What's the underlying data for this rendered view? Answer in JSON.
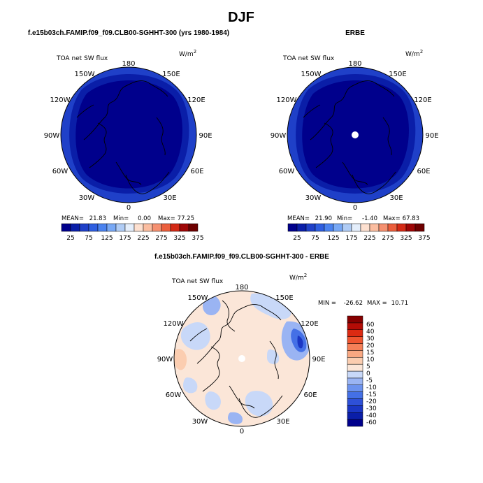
{
  "figure": {
    "title": "DJF"
  },
  "colors": {
    "abs_colorbar": [
      "#00008c",
      "#0a1ea8",
      "#1f40c8",
      "#2e5ee0",
      "#4a82ef",
      "#78a8f5",
      "#b0ccf5",
      "#e4eefb",
      "#fde0d0",
      "#fbbda0",
      "#f59070",
      "#eb5e3c",
      "#d42a16",
      "#9e0606",
      "#6e0000"
    ],
    "diff_colorbar": [
      "#00008c",
      "#0a1ea8",
      "#1a36c4",
      "#2e50d8",
      "#4470e6",
      "#6c92ee",
      "#9ab4f3",
      "#c8d8f8",
      "#fbe6d8",
      "#fbcdb0",
      "#f9a882",
      "#f58058",
      "#ef5530",
      "#dc2a12",
      "#b40c06",
      "#860000"
    ],
    "land_outline": "#000000"
  },
  "chart_data": [
    {
      "type": "heatmap",
      "projection": "polar-stereographic",
      "title": "f.e15b03ch.FAMIP.f09_f09.CLB00-SGHHT-300 (yrs 1980-1984)",
      "variable": "TOA net SW flux",
      "units": "W/m",
      "units_exp": "2",
      "lon_labels": [
        "180",
        "150E",
        "120E",
        "90E",
        "60E",
        "30E",
        "0",
        "30W",
        "60W",
        "90W",
        "120W",
        "150W"
      ],
      "stats": {
        "mean_label": "MEAN=",
        "mean": "21.83",
        "min_label": "Min=",
        "min": "0.00",
        "max_label": "Max=",
        "max": "77.25"
      },
      "colorbar_ticks": [
        "25",
        "75",
        "125",
        "175",
        "225",
        "275",
        "325",
        "375"
      ]
    },
    {
      "type": "heatmap",
      "projection": "polar-stereographic",
      "title": "ERBE",
      "variable": "TOA net SW flux",
      "units": "W/m",
      "units_exp": "2",
      "lon_labels": [
        "180",
        "150E",
        "120E",
        "90E",
        "60E",
        "30E",
        "0",
        "30W",
        "60W",
        "90W",
        "120W",
        "150W"
      ],
      "stats": {
        "mean_label": "MEAN=",
        "mean": "21.90",
        "min_label": "Min=",
        "min": "-1.40",
        "max_label": "Max=",
        "max": "67.83"
      },
      "colorbar_ticks": [
        "25",
        "75",
        "125",
        "175",
        "225",
        "275",
        "325",
        "375"
      ]
    },
    {
      "type": "heatmap",
      "projection": "polar-stereographic",
      "title": "f.e15b03ch.FAMIP.f09_f09.CLB00-SGHHT-300 - ERBE",
      "variable": "TOA net SW flux",
      "units": "W/m",
      "units_exp": "2",
      "lon_labels": [
        "180",
        "150E",
        "120E",
        "90E",
        "60E",
        "30E",
        "0",
        "30W",
        "60W",
        "90W",
        "120W",
        "150W"
      ],
      "stats": {
        "min_label": "MIN =",
        "min": "-26.62",
        "max_label": "MAX =",
        "max": "10.71"
      },
      "colorbar_ticks": [
        "60",
        "40",
        "30",
        "20",
        "15",
        "10",
        "5",
        "0",
        "-5",
        "-10",
        "-15",
        "-20",
        "-30",
        "-40",
        "-60"
      ]
    }
  ]
}
